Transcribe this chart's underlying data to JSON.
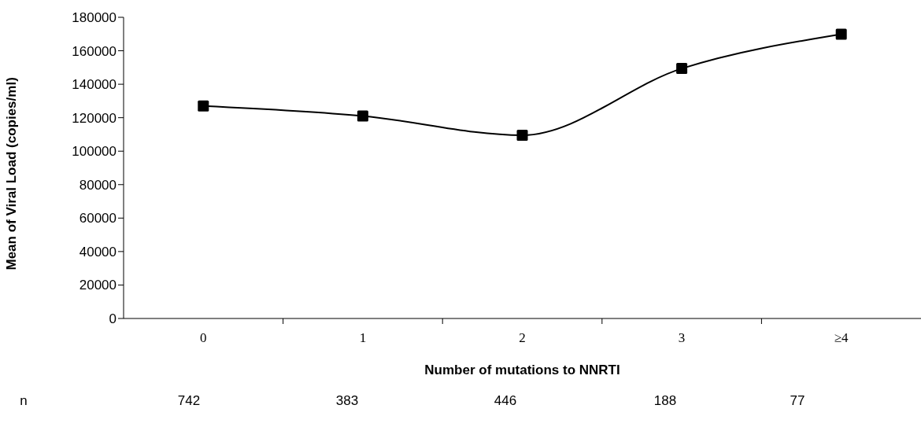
{
  "chart_data": {
    "type": "line",
    "xlabel": "Number of mutations to NNRTI",
    "ylabel": "Mean of Viral Load (copies/ml)",
    "categories": [
      "0",
      "1",
      "2",
      "3",
      "≥4"
    ],
    "series": [
      {
        "color": "#000000",
        "values": [
          127000,
          121000,
          109500,
          149400,
          169900
        ]
      }
    ],
    "ylim": [
      0,
      180000
    ],
    "yticks": [
      0,
      20000,
      40000,
      60000,
      80000,
      100000,
      120000,
      140000,
      160000,
      180000
    ],
    "grid": false,
    "legend": false,
    "marker": "square",
    "line_style": "solid",
    "annotations": [
      "n",
      "742",
      "383",
      "446",
      "188",
      "77"
    ]
  }
}
